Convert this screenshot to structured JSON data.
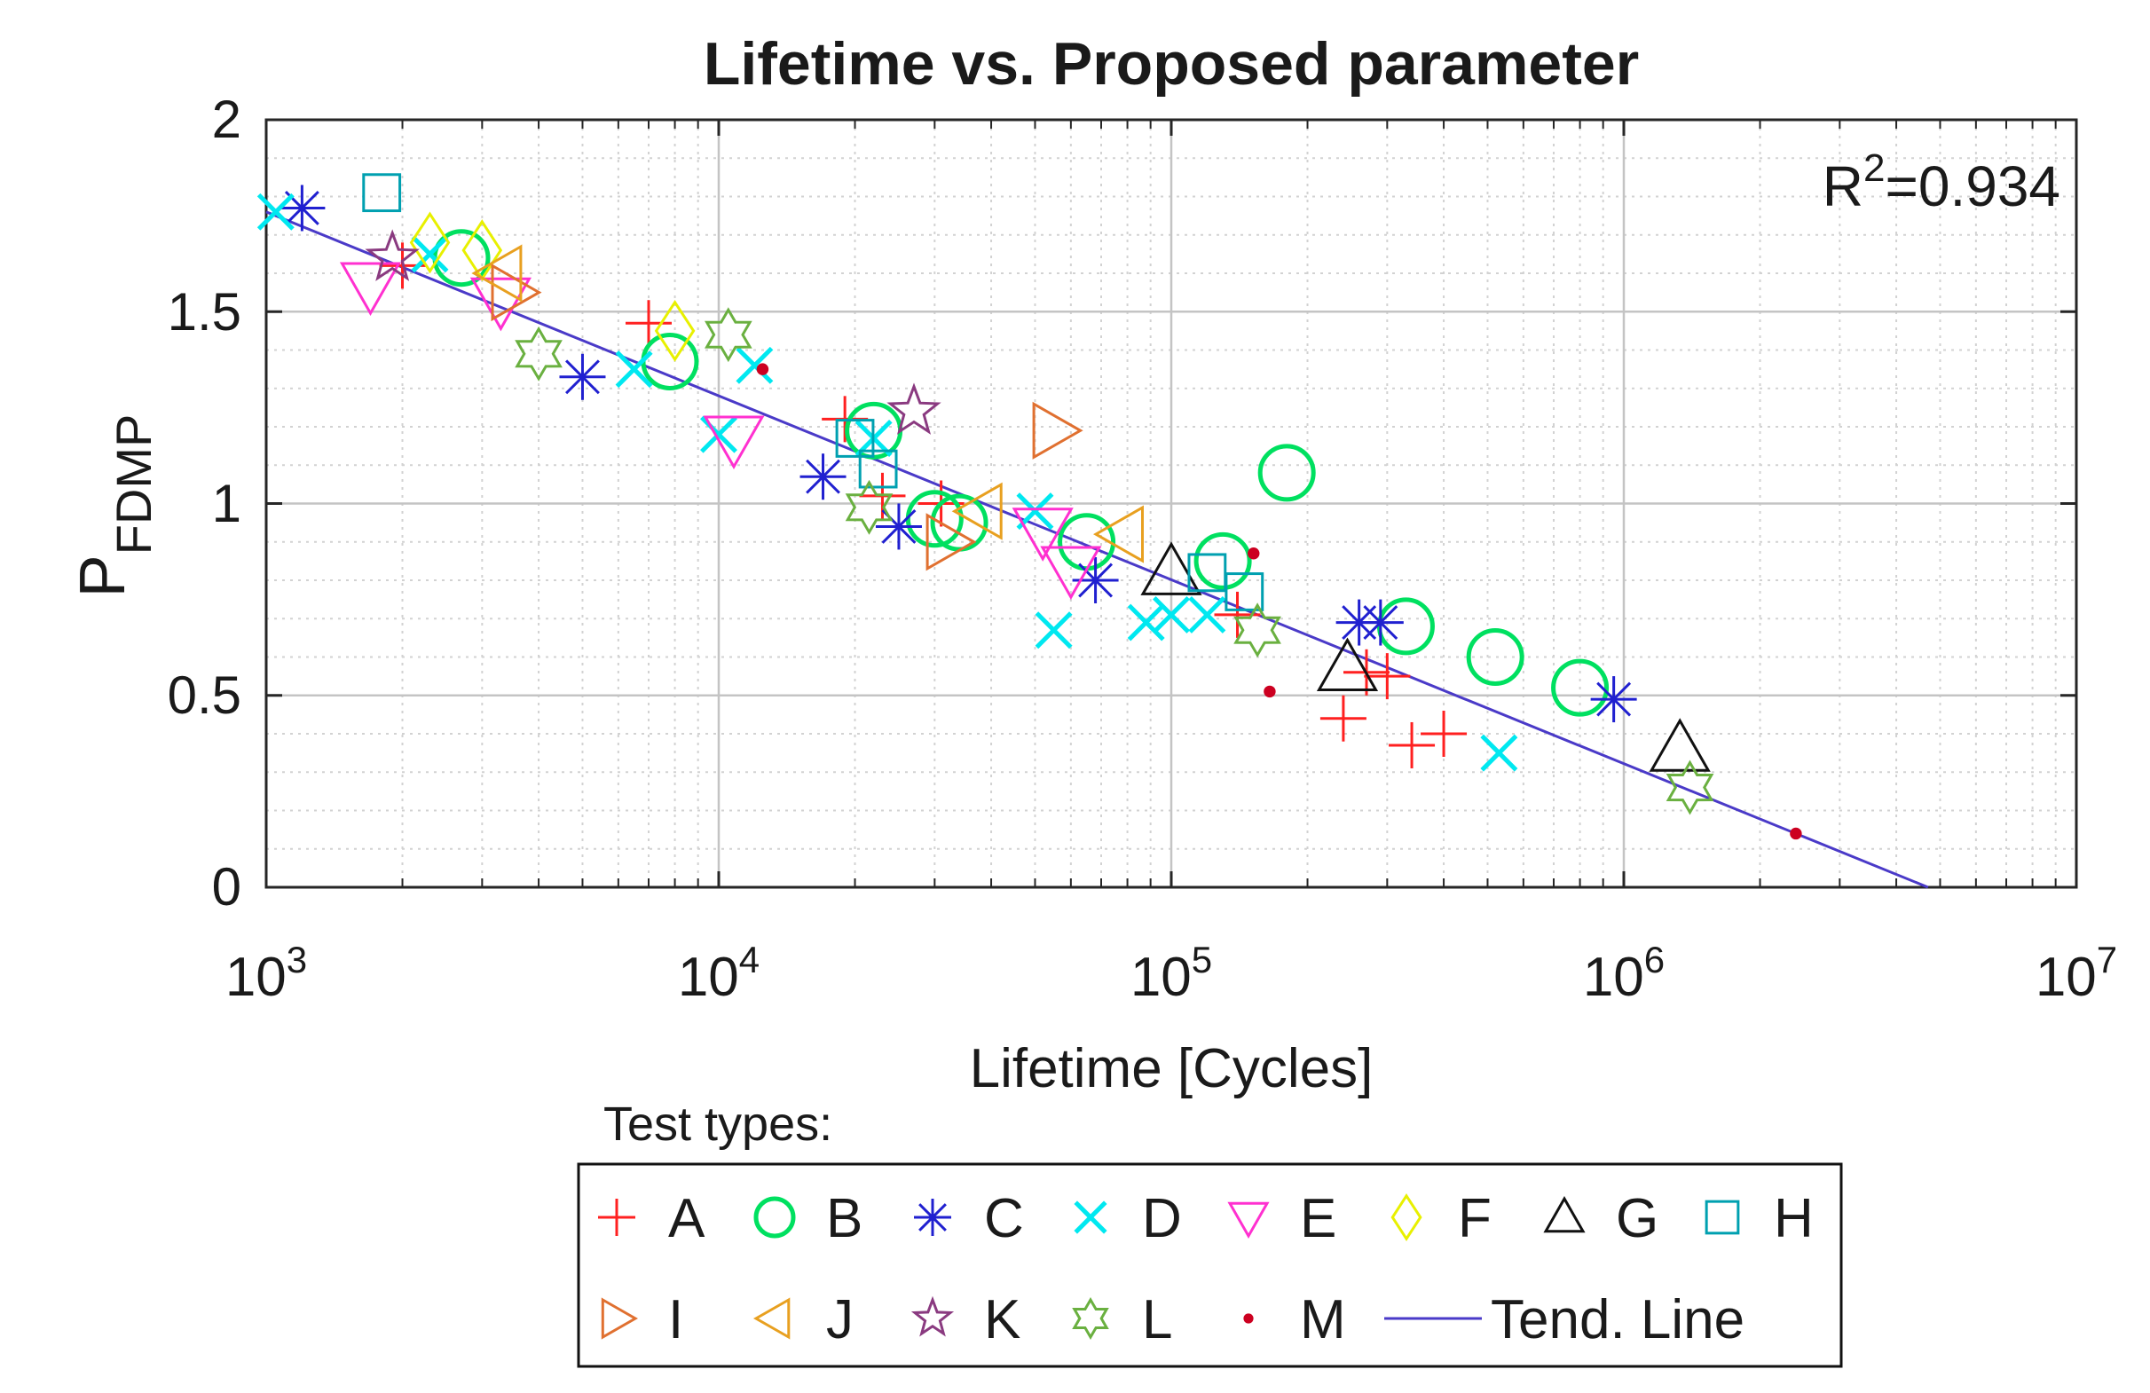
{
  "chart_data": {
    "type": "scatter",
    "title": "Lifetime vs. Proposed parameter",
    "xlabel": "Lifetime [Cycles]",
    "ylabel_main": "P",
    "ylabel_sub": "FDMP",
    "xscale": "log",
    "xlim": [
      1000,
      10000000
    ],
    "ylim": [
      0,
      2
    ],
    "xticks": [
      {
        "value": 1000,
        "base": "10",
        "exp": "3"
      },
      {
        "value": 10000,
        "base": "10",
        "exp": "4"
      },
      {
        "value": 100000,
        "base": "10",
        "exp": "5"
      },
      {
        "value": 1000000,
        "base": "10",
        "exp": "6"
      },
      {
        "value": 10000000,
        "base": "10",
        "exp": "7"
      }
    ],
    "yticks": [
      {
        "value": 0,
        "label": "0"
      },
      {
        "value": 0.5,
        "label": "0.5"
      },
      {
        "value": 1,
        "label": "1"
      },
      {
        "value": 1.5,
        "label": "1.5"
      },
      {
        "value": 2,
        "label": "2"
      }
    ],
    "grid": true,
    "annotation": {
      "base": "R",
      "exp": "2",
      "rest": "=0.934"
    },
    "legend_title": "Test types:",
    "legend_position": "bottom",
    "series": [
      {
        "name": "A",
        "marker": "plus",
        "color": "#ff2020",
        "points": [
          [
            2000,
            1.62
          ],
          [
            7000,
            1.47
          ],
          [
            19000,
            1.22
          ],
          [
            23000,
            1.02
          ],
          [
            31000,
            1.0
          ],
          [
            240000,
            0.44
          ],
          [
            270000,
            0.56
          ],
          [
            300000,
            0.55
          ],
          [
            340000,
            0.37
          ],
          [
            400000,
            0.4
          ],
          [
            140000,
            0.71
          ]
        ]
      },
      {
        "name": "B",
        "marker": "circle",
        "color": "#00e060",
        "points": [
          [
            2700,
            1.64
          ],
          [
            7800,
            1.37
          ],
          [
            22000,
            1.19
          ],
          [
            30000,
            0.96
          ],
          [
            34000,
            0.95
          ],
          [
            65000,
            0.9
          ],
          [
            130000,
            0.85
          ],
          [
            180000,
            1.08
          ],
          [
            330000,
            0.68
          ],
          [
            520000,
            0.6
          ],
          [
            800000,
            0.52
          ]
        ]
      },
      {
        "name": "C",
        "marker": "asterisk",
        "color": "#2020d0",
        "points": [
          [
            1200,
            1.77
          ],
          [
            5000,
            1.33
          ],
          [
            17000,
            1.07
          ],
          [
            25000,
            0.94
          ],
          [
            68000,
            0.8
          ],
          [
            260000,
            0.69
          ],
          [
            290000,
            0.69
          ],
          [
            950000,
            0.49
          ]
        ]
      },
      {
        "name": "D",
        "marker": "x",
        "color": "#00e8f0",
        "points": [
          [
            1050,
            1.76
          ],
          [
            2300,
            1.65
          ],
          [
            6500,
            1.35
          ],
          [
            10000,
            1.18
          ],
          [
            12000,
            1.36
          ],
          [
            22000,
            1.17
          ],
          [
            50000,
            0.98
          ],
          [
            55000,
            0.67
          ],
          [
            88000,
            0.69
          ],
          [
            100000,
            0.71
          ],
          [
            120000,
            0.71
          ],
          [
            530000,
            0.35
          ]
        ]
      },
      {
        "name": "E",
        "marker": "triangle-down",
        "color": "#ff30d0",
        "points": [
          [
            1700,
            1.57
          ],
          [
            3300,
            1.53
          ],
          [
            10800,
            1.17
          ],
          [
            52000,
            0.93
          ],
          [
            60000,
            0.83
          ]
        ]
      },
      {
        "name": "F",
        "marker": "diamond",
        "color": "#e8f000",
        "points": [
          [
            2300,
            1.68
          ],
          [
            3000,
            1.66
          ],
          [
            8000,
            1.45
          ]
        ]
      },
      {
        "name": "G",
        "marker": "triangle-up",
        "color": "#111111",
        "points": [
          [
            100000,
            0.82
          ],
          [
            245000,
            0.57
          ],
          [
            1330000,
            0.36
          ]
        ]
      },
      {
        "name": "H",
        "marker": "square",
        "color": "#00a0b0",
        "points": [
          [
            1800,
            1.81
          ],
          [
            20000,
            1.17
          ],
          [
            22500,
            1.09
          ],
          [
            120000,
            0.82
          ],
          [
            145000,
            0.77
          ]
        ]
      },
      {
        "name": "I",
        "marker": "triangle-right",
        "color": "#e07030",
        "points": [
          [
            3500,
            1.55
          ],
          [
            32000,
            0.9
          ],
          [
            55000,
            1.19
          ]
        ]
      },
      {
        "name": "J",
        "marker": "triangle-left",
        "color": "#e8a020",
        "points": [
          [
            3300,
            1.6
          ],
          [
            38000,
            0.98
          ],
          [
            78000,
            0.92
          ]
        ]
      },
      {
        "name": "K",
        "marker": "star5",
        "color": "#8a3a80",
        "points": [
          [
            1900,
            1.64
          ],
          [
            27000,
            1.24
          ]
        ]
      },
      {
        "name": "L",
        "marker": "hexagram",
        "color": "#6ab040",
        "points": [
          [
            4000,
            1.39
          ],
          [
            10500,
            1.44
          ],
          [
            21500,
            0.99
          ],
          [
            155000,
            0.67
          ],
          [
            1400000,
            0.26
          ]
        ]
      },
      {
        "name": "M",
        "marker": "dot",
        "color": "#cc0020",
        "points": [
          [
            12500,
            1.35
          ],
          [
            152000,
            0.87
          ],
          [
            165000,
            0.51
          ],
          [
            2400000,
            0.14
          ]
        ]
      },
      {
        "name": "Tend. Line",
        "marker": "line",
        "color": "#4a3ac8",
        "points": [
          [
            1000,
            1.76
          ],
          [
            4700000,
            0.0
          ]
        ]
      }
    ]
  }
}
